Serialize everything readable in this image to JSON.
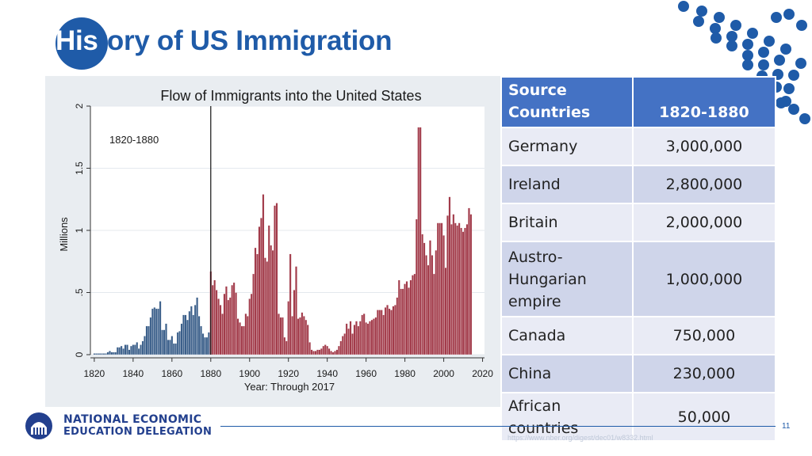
{
  "slide": {
    "title_highlight": "His",
    "title_rest": "tory of US Immigration",
    "page_number": "11",
    "source_note": "https://www.nber.org/digest/dec01/w8332.html"
  },
  "logo": {
    "icon": "capitol-dome-icon",
    "line1": "NATIONAL ECONOMIC",
    "line2": "EDUCATION DELEGATION"
  },
  "colors": {
    "brand_blue": "#1f5ba8",
    "table_header": "#4472c4",
    "pre_1880": "#3b5f8a",
    "post_1880": "#a23b4a"
  },
  "table": {
    "header": {
      "col1": "Source Countries",
      "col1_line1": "Source",
      "col1_line2": "Countries",
      "col2": "1820-1880"
    },
    "rows": [
      {
        "country": "Germany",
        "value": "3,000,000"
      },
      {
        "country": "Ireland",
        "value": "2,800,000"
      },
      {
        "country": "Britain",
        "value": "2,000,000"
      },
      {
        "country": "Austro-Hungarian empire",
        "country_lines": [
          "Austro-",
          "Hungarian",
          "empire"
        ],
        "value": "1,000,000"
      },
      {
        "country": "Canada",
        "value": "750,000"
      },
      {
        "country": "China",
        "value": "230,000"
      },
      {
        "country": "African countries",
        "country_lines": [
          "African",
          "countries"
        ],
        "value": "50,000"
      }
    ]
  },
  "chart_data": {
    "type": "bar",
    "title": "Flow of Immigrants into the United States",
    "xlabel": "Year: Through 2017",
    "ylabel": "Millions",
    "annotation": "1820-1880",
    "reference_line_x": 1880,
    "xlim": [
      1818,
      2021
    ],
    "ylim": [
      0,
      2
    ],
    "x_ticks": [
      "1820",
      "1840",
      "1860",
      "1880",
      "1900",
      "1920",
      "1940",
      "1960",
      "1980",
      "2000",
      "2020"
    ],
    "y_ticks": [
      "0",
      ".5",
      "1",
      "1.5",
      "2"
    ],
    "grid": true,
    "split_year": 1880,
    "years_start": 1820,
    "values": [
      0.01,
      0.01,
      0.01,
      0.01,
      0.01,
      0.01,
      0.01,
      0.02,
      0.03,
      0.02,
      0.02,
      0.02,
      0.06,
      0.06,
      0.07,
      0.05,
      0.08,
      0.08,
      0.04,
      0.07,
      0.08,
      0.08,
      0.1,
      0.05,
      0.08,
      0.11,
      0.15,
      0.23,
      0.23,
      0.3,
      0.37,
      0.38,
      0.37,
      0.37,
      0.43,
      0.2,
      0.2,
      0.25,
      0.12,
      0.12,
      0.15,
      0.09,
      0.09,
      0.18,
      0.19,
      0.25,
      0.32,
      0.32,
      0.28,
      0.35,
      0.39,
      0.32,
      0.4,
      0.46,
      0.31,
      0.23,
      0.17,
      0.14,
      0.14,
      0.18,
      0.67,
      0.56,
      0.6,
      0.52,
      0.45,
      0.4,
      0.33,
      0.49,
      0.55,
      0.44,
      0.46,
      0.56,
      0.58,
      0.5,
      0.29,
      0.26,
      0.23,
      0.23,
      0.33,
      0.31,
      0.45,
      0.49,
      0.65,
      0.86,
      0.81,
      1.03,
      1.1,
      1.29,
      0.78,
      0.75,
      1.04,
      0.88,
      0.84,
      1.2,
      1.22,
      0.33,
      0.3,
      0.3,
      0.14,
      0.11,
      0.43,
      0.81,
      0.31,
      0.52,
      0.71,
      0.29,
      0.3,
      0.34,
      0.31,
      0.28,
      0.24,
      0.1,
      0.04,
      0.03,
      0.03,
      0.04,
      0.04,
      0.05,
      0.07,
      0.08,
      0.07,
      0.05,
      0.03,
      0.02,
      0.03,
      0.04,
      0.07,
      0.11,
      0.15,
      0.17,
      0.25,
      0.21,
      0.27,
      0.17,
      0.24,
      0.27,
      0.23,
      0.27,
      0.32,
      0.33,
      0.26,
      0.25,
      0.27,
      0.28,
      0.29,
      0.3,
      0.36,
      0.36,
      0.36,
      0.32,
      0.38,
      0.4,
      0.37,
      0.36,
      0.39,
      0.4,
      0.46,
      0.6,
      0.53,
      0.53,
      0.57,
      0.59,
      0.54,
      0.6,
      0.64,
      0.65,
      1.09,
      1.83,
      1.83,
      0.97,
      0.9,
      0.8,
      0.72,
      0.92,
      0.8,
      0.65,
      0.84,
      1.06,
      1.06,
      1.06,
      0.96,
      0.7,
      1.12,
      1.27,
      1.05,
      1.13,
      1.06,
      1.04,
      1.06,
      1.02,
      0.99,
      1.02,
      1.05,
      1.18,
      1.13
    ]
  }
}
